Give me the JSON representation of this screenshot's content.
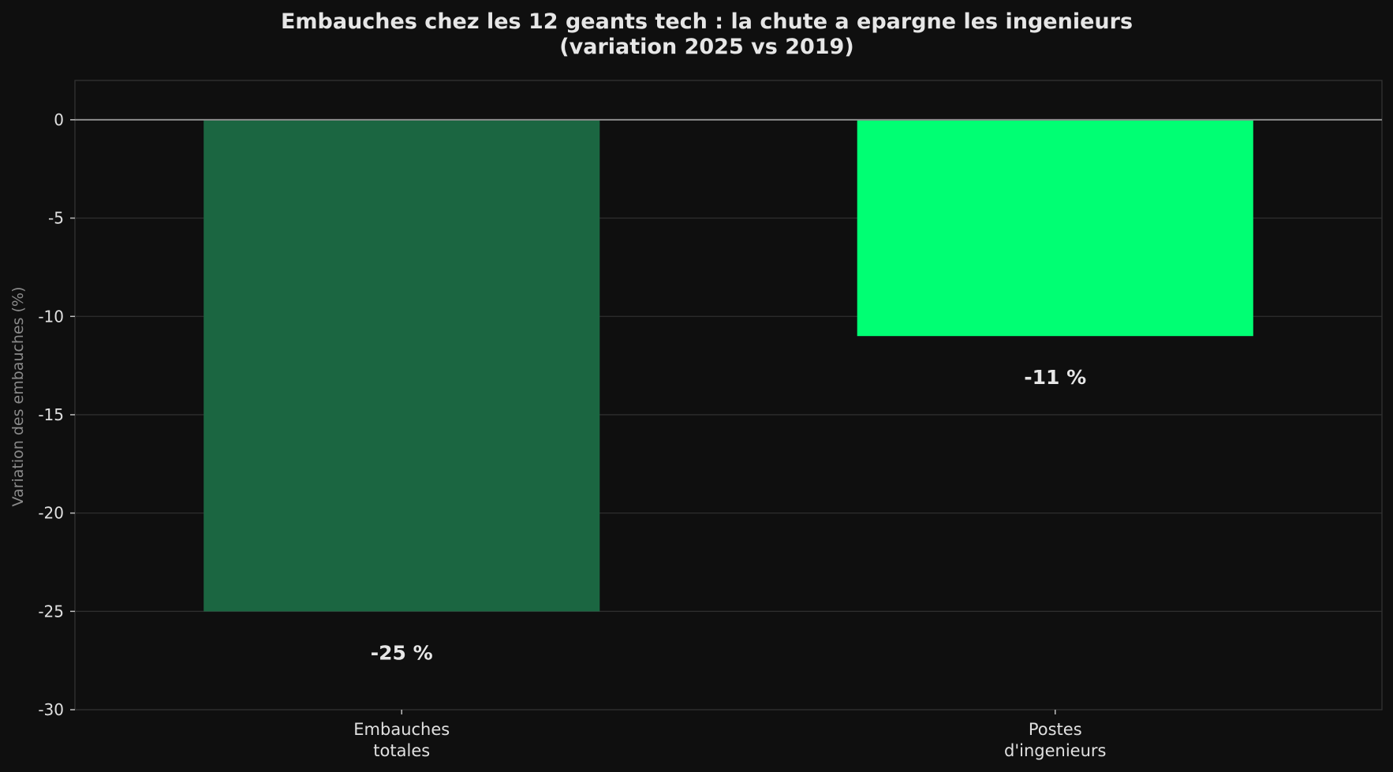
{
  "chart_data": {
    "type": "bar",
    "title": "Embauches chez les 12 geants tech : la chute a epargne les ingenieurs",
    "subtitle": "(variation 2025 vs 2019)",
    "categories": [
      [
        "Embauches",
        "totales"
      ],
      [
        "Postes",
        "d'ingenieurs"
      ]
    ],
    "values": [
      -25,
      -11
    ],
    "value_labels": [
      "-25 %",
      "-11 %"
    ],
    "bar_colors": [
      "#1b6641",
      "#00ff73"
    ],
    "ylabel": "Variation des embauches (%)",
    "xlabel": "",
    "ylim": [
      -30,
      2
    ],
    "yticks": [
      0,
      -5,
      -10,
      -15,
      -20,
      -25,
      -30
    ],
    "grid": true
  }
}
